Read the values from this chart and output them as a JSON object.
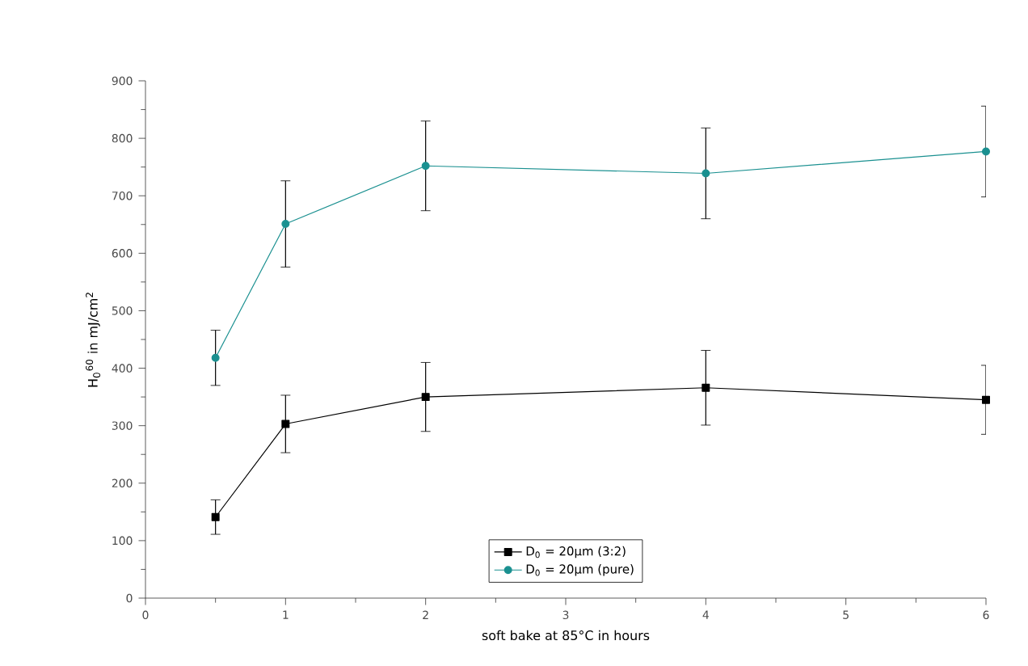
{
  "chart_data": {
    "type": "line",
    "xlabel": "soft bake at 85°C in hours",
    "ylabel": "H$_{0}$$^{60}$ in mJ/cm$^{2}$",
    "x": [
      0.5,
      1,
      2,
      4,
      6
    ],
    "series": [
      {
        "name": "D$_{0}$ = 20µm (3:2)",
        "color": "#000000",
        "marker": "square",
        "values": [
          141,
          303,
          350,
          366,
          345
        ],
        "errors": [
          30,
          50,
          60,
          65,
          60
        ]
      },
      {
        "name": "D$_{0}$ = 20µm (pure)",
        "color": "#1a9090",
        "marker": "circle",
        "values": [
          418,
          651,
          752,
          739,
          777
        ],
        "errors": [
          48,
          75,
          78,
          79,
          79
        ]
      }
    ],
    "xlim": [
      0,
      6
    ],
    "xticks": [
      0,
      1,
      2,
      3,
      4,
      5,
      6
    ],
    "ylim": [
      0,
      900
    ],
    "yticks": [
      0,
      100,
      200,
      300,
      400,
      500,
      600,
      700,
      800,
      900
    ],
    "legend": "bottom",
    "grid": false,
    "line_style": "solid"
  }
}
